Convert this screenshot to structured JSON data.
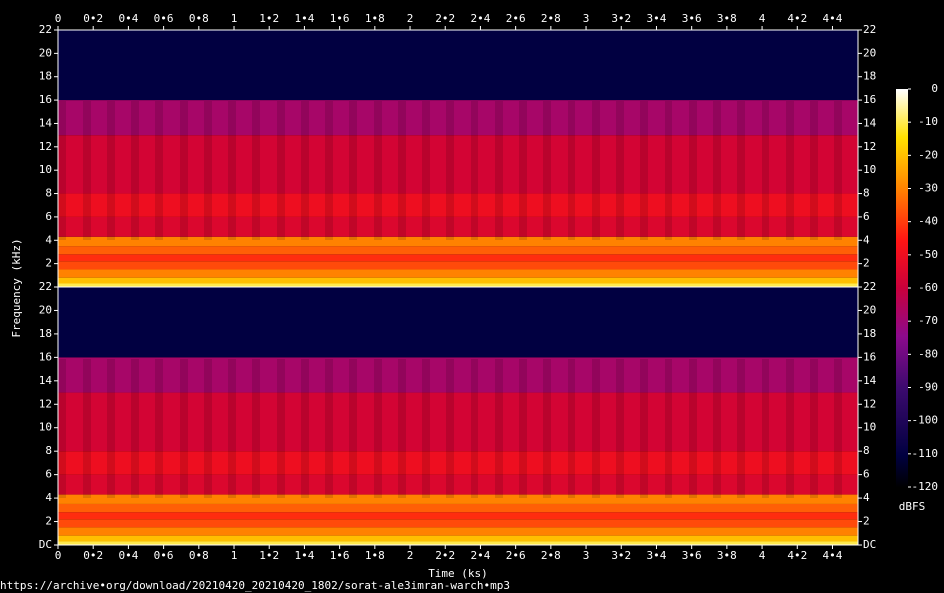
{
  "chart_data": {
    "type": "spectrogram",
    "x_label": "Time (ks)",
    "y_label": "Frequency (kHz)",
    "colorbar_label": "dBFS",
    "source": "https://archive•org/download/20210420_20210420_1802/sorat-ale3imran-warch•mp3",
    "xlim": [
      0,
      4.545
    ],
    "xticks": [
      0,
      {
        "value": 0.2,
        "label": "0•2"
      },
      {
        "value": 0.4,
        "label": "0•4"
      },
      {
        "value": 0.6,
        "label": "0•6"
      },
      {
        "value": 0.8,
        "label": "0•8"
      },
      1,
      {
        "value": 1.2,
        "label": "1•2"
      },
      {
        "value": 1.4,
        "label": "1•4"
      },
      {
        "value": 1.6,
        "label": "1•6"
      },
      {
        "value": 1.8,
        "label": "1•8"
      },
      2,
      {
        "value": 2.2,
        "label": "2•2"
      },
      {
        "value": 2.4,
        "label": "2•4"
      },
      {
        "value": 2.6,
        "label": "2•6"
      },
      {
        "value": 2.8,
        "label": "2•8"
      },
      3,
      {
        "value": 3.2,
        "label": "3•2"
      },
      {
        "value": 3.4,
        "label": "3•4"
      },
      {
        "value": 3.6,
        "label": "3•6"
      },
      {
        "value": 3.8,
        "label": "3•8"
      },
      4,
      {
        "value": 4.2,
        "label": "4•2"
      },
      {
        "value": 4.4,
        "label": "4•4"
      }
    ],
    "ylim": [
      0,
      22
    ],
    "channels": [
      {
        "yticks": [
          2,
          4,
          6,
          8,
          10,
          12,
          14,
          16,
          18,
          20,
          22
        ]
      },
      {
        "yticks": [
          {
            "value": 0,
            "label": "DC"
          },
          2,
          4,
          6,
          8,
          10,
          12,
          14,
          16,
          18,
          20,
          22
        ]
      }
    ],
    "clim": [
      -120,
      0
    ],
    "cticks": [
      0,
      -10,
      -20,
      -30,
      -40,
      -50,
      -60,
      -70,
      -80,
      -90,
      -100,
      -110,
      -120
    ],
    "spectrum": {
      "freq_edges": [
        0,
        0.3,
        0.8,
        1.5,
        2.2,
        2.8,
        3.5,
        4.3,
        6,
        8,
        13,
        16,
        22
      ],
      "levels": [
        -10,
        -20,
        -30,
        -38,
        -42,
        -35,
        -30,
        -55,
        -50,
        -57,
        -68,
        -110
      ]
    }
  }
}
